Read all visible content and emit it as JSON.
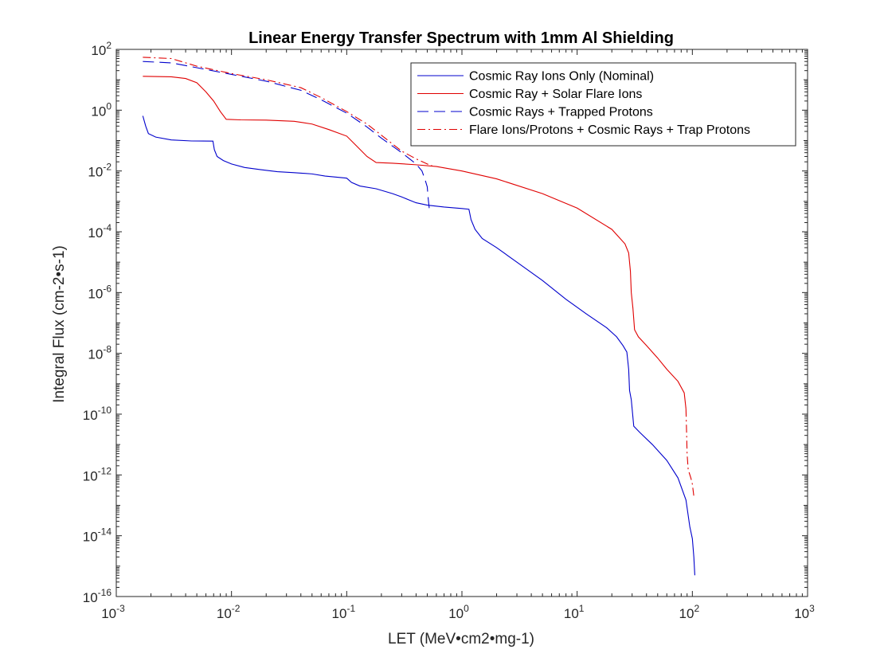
{
  "chart_data": {
    "type": "line",
    "title": "Linear Energy Transfer Spectrum with 1mm Al Shielding",
    "xlabel": "LET (MeV•cm2•mg-1)",
    "ylabel": "Integral Flux (cm-2•s-1)",
    "x_scale": "log",
    "y_scale": "log",
    "xlim": [
      0.001,
      1000
    ],
    "ylim": [
      1e-16,
      100
    ],
    "x_ticks": [
      {
        "base": "10",
        "exp": "-3",
        "value": 0.001
      },
      {
        "base": "10",
        "exp": "-2",
        "value": 0.01
      },
      {
        "base": "10",
        "exp": "-1",
        "value": 0.1
      },
      {
        "base": "10",
        "exp": "0",
        "value": 1
      },
      {
        "base": "10",
        "exp": "1",
        "value": 10
      },
      {
        "base": "10",
        "exp": "2",
        "value": 100
      },
      {
        "base": "10",
        "exp": "3",
        "value": 1000
      }
    ],
    "y_ticks": [
      {
        "base": "10",
        "exp": "-16",
        "value": 1e-16
      },
      {
        "base": "10",
        "exp": "-14",
        "value": 1e-14
      },
      {
        "base": "10",
        "exp": "-12",
        "value": 1e-12
      },
      {
        "base": "10",
        "exp": "-10",
        "value": 1e-10
      },
      {
        "base": "10",
        "exp": "-8",
        "value": 1e-08
      },
      {
        "base": "10",
        "exp": "-6",
        "value": 1e-06
      },
      {
        "base": "10",
        "exp": "-4",
        "value": 0.0001
      },
      {
        "base": "10",
        "exp": "-2",
        "value": 0.01
      },
      {
        "base": "10",
        "exp": "0",
        "value": 1
      },
      {
        "base": "10",
        "exp": "2",
        "value": 100
      }
    ],
    "grid": false,
    "legend_position": "top-right",
    "series": [
      {
        "name": "Cosmic Ray Ions Only (Nominal)",
        "color": "#0000cc",
        "style": "solid",
        "points": [
          [
            0.0017,
            0.65
          ],
          [
            0.0018,
            0.3
          ],
          [
            0.0019,
            0.17
          ],
          [
            0.0022,
            0.13
          ],
          [
            0.003,
            0.105
          ],
          [
            0.0045,
            0.097
          ],
          [
            0.0069,
            0.096
          ],
          [
            0.0071,
            0.05
          ],
          [
            0.0075,
            0.03
          ],
          [
            0.0085,
            0.022
          ],
          [
            0.01,
            0.017
          ],
          [
            0.013,
            0.013
          ],
          [
            0.018,
            0.011
          ],
          [
            0.025,
            0.0095
          ],
          [
            0.035,
            0.0088
          ],
          [
            0.05,
            0.008
          ],
          [
            0.065,
            0.0068
          ],
          [
            0.08,
            0.0063
          ],
          [
            0.1,
            0.0058
          ],
          [
            0.11,
            0.0042
          ],
          [
            0.13,
            0.0032
          ],
          [
            0.18,
            0.0026
          ],
          [
            0.25,
            0.0018
          ],
          [
            0.3,
            0.0014
          ],
          [
            0.35,
            0.0011
          ],
          [
            0.4,
            0.0009
          ],
          [
            0.5,
            0.00075
          ],
          [
            0.7,
            0.00065
          ],
          [
            1.0,
            0.00058
          ],
          [
            1.15,
            0.00055
          ],
          [
            1.2,
            0.00025
          ],
          [
            1.3,
            0.00012
          ],
          [
            1.5,
            6e-05
          ],
          [
            2.0,
            3e-05
          ],
          [
            3.0,
            1e-05
          ],
          [
            5.0,
            2.5e-06
          ],
          [
            8.0,
            6e-07
          ],
          [
            12.0,
            2e-07
          ],
          [
            18.0,
            7e-08
          ],
          [
            22.0,
            3.5e-08
          ],
          [
            25.0,
            1.8e-08
          ],
          [
            27.0,
            1.1e-08
          ],
          [
            28.0,
            3e-09
          ],
          [
            28.5,
            6e-10
          ],
          [
            29.5,
            3e-10
          ],
          [
            31.0,
            4e-11
          ],
          [
            35.0,
            2.5e-11
          ],
          [
            45.0,
            1e-11
          ],
          [
            60.0,
            3e-12
          ],
          [
            75.0,
            8e-13
          ],
          [
            88.0,
            1.5e-13
          ],
          [
            95.0,
            2e-14
          ],
          [
            100.0,
            8e-15
          ],
          [
            103.0,
            2e-15
          ],
          [
            105.0,
            5e-16
          ]
        ]
      },
      {
        "name": "Cosmic Ray + Solar Flare Ions",
        "color": "#e00000",
        "style": "solid",
        "points": [
          [
            0.0017,
            13.0
          ],
          [
            0.003,
            12.5
          ],
          [
            0.004,
            11.0
          ],
          [
            0.005,
            8.0
          ],
          [
            0.006,
            4.0
          ],
          [
            0.007,
            2.0
          ],
          [
            0.008,
            0.9
          ],
          [
            0.009,
            0.5
          ],
          [
            0.012,
            0.48
          ],
          [
            0.02,
            0.47
          ],
          [
            0.035,
            0.43
          ],
          [
            0.05,
            0.35
          ],
          [
            0.07,
            0.23
          ],
          [
            0.1,
            0.14
          ],
          [
            0.12,
            0.07
          ],
          [
            0.15,
            0.03
          ],
          [
            0.18,
            0.019
          ],
          [
            0.25,
            0.018
          ],
          [
            0.4,
            0.016
          ],
          [
            0.6,
            0.014
          ],
          [
            1.0,
            0.01
          ],
          [
            2.0,
            0.0055
          ],
          [
            5.0,
            0.0018
          ],
          [
            10.0,
            0.0006
          ],
          [
            20.0,
            0.00012
          ],
          [
            26.0,
            4e-05
          ],
          [
            28.0,
            2e-05
          ],
          [
            29.0,
            5e-06
          ],
          [
            29.5,
            1e-06
          ],
          [
            30.5,
            3e-07
          ],
          [
            31.5,
            6e-08
          ],
          [
            34.0,
            3.5e-08
          ],
          [
            40.0,
            1.8e-08
          ],
          [
            50.0,
            7e-09
          ],
          [
            60.0,
            3e-09
          ],
          [
            75.0,
            1.2e-09
          ],
          [
            85.0,
            5e-10
          ],
          [
            88.0,
            1.5e-10
          ]
        ]
      },
      {
        "name": "Cosmic Rays + Trapped Protons",
        "color": "#0000cc",
        "style": "dashed",
        "points": [
          [
            0.0017,
            40.0
          ],
          [
            0.003,
            36.0
          ],
          [
            0.005,
            25.0
          ],
          [
            0.01,
            15.0
          ],
          [
            0.02,
            9.0
          ],
          [
            0.04,
            4.5
          ],
          [
            0.06,
            2.2
          ],
          [
            0.1,
            0.8
          ],
          [
            0.15,
            0.28
          ],
          [
            0.2,
            0.12
          ],
          [
            0.3,
            0.04
          ],
          [
            0.4,
            0.017
          ],
          [
            0.45,
            0.01
          ],
          [
            0.48,
            0.005
          ],
          [
            0.5,
            0.003
          ],
          [
            0.51,
            0.0012
          ],
          [
            0.52,
            0.0006
          ]
        ]
      },
      {
        "name": "Flare Ions/Protons + Cosmic Rays + Trap Protons",
        "color": "#e00000",
        "style": "dashdot",
        "points": [
          [
            0.0017,
            55.0
          ],
          [
            0.003,
            50.0
          ],
          [
            0.005,
            28.0
          ],
          [
            0.01,
            16.0
          ],
          [
            0.02,
            10.0
          ],
          [
            0.04,
            5.5
          ],
          [
            0.06,
            2.6
          ],
          [
            0.1,
            0.9
          ],
          [
            0.15,
            0.35
          ],
          [
            0.2,
            0.15
          ],
          [
            0.3,
            0.045
          ],
          [
            0.4,
            0.025
          ],
          [
            0.5,
            0.017
          ],
          [
            0.55,
            0.015
          ]
        ],
        "tail_points": [
          [
            88.0,
            1.5e-10
          ],
          [
            89.0,
            3e-11
          ],
          [
            90.0,
            5e-12
          ],
          [
            92.0,
            1.5e-12
          ],
          [
            97.0,
            8e-13
          ],
          [
            100.0,
            5e-13
          ],
          [
            103.0,
            2e-13
          ]
        ]
      }
    ]
  }
}
